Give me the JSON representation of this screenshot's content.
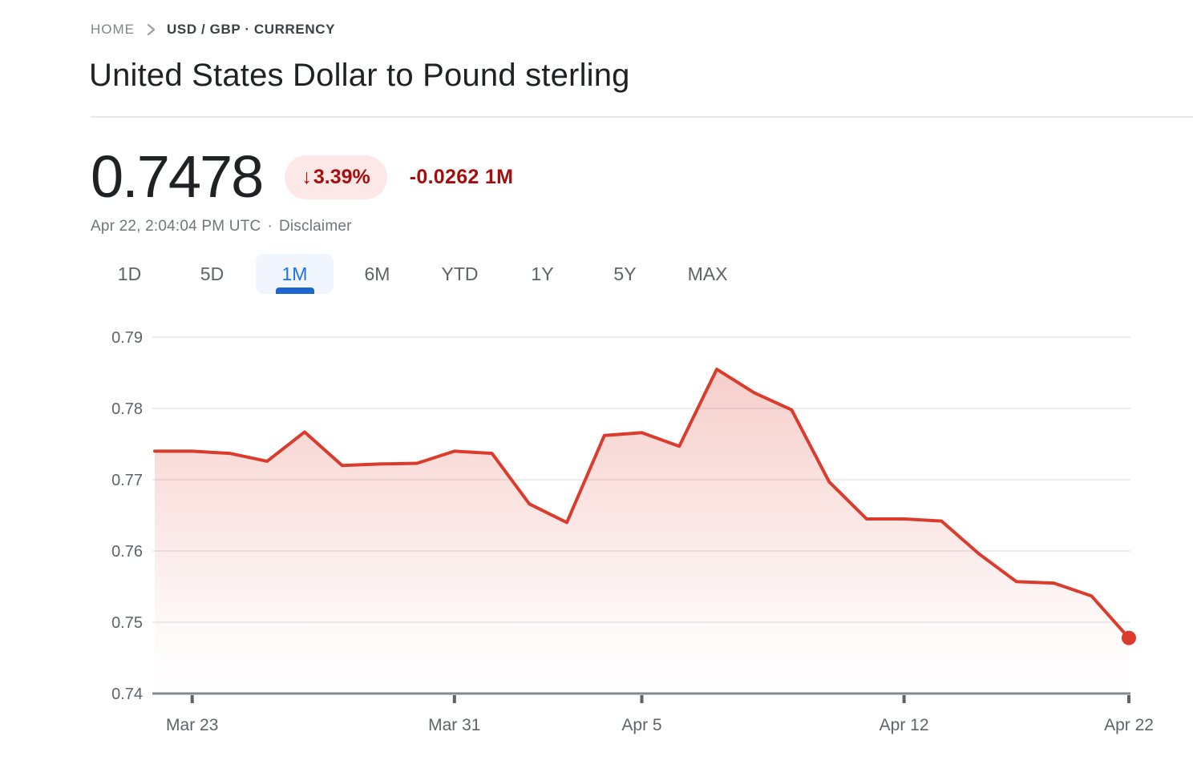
{
  "breadcrumb": {
    "home_label": "HOME",
    "current_label": "USD / GBP · CURRENCY"
  },
  "page_title": "United States Dollar to Pound sterling",
  "quote": {
    "price": "0.7478",
    "down_arrow": "↓",
    "change_percent": "3.39%",
    "change_absolute": "-0.0262 1M",
    "direction": "down",
    "timestamp": "Apr 22, 2:04:04 PM UTC",
    "separator": "·",
    "disclaimer_label": "Disclaimer"
  },
  "range_tabs": {
    "items": [
      {
        "label": "1D",
        "active": false
      },
      {
        "label": "5D",
        "active": false
      },
      {
        "label": "1M",
        "active": true
      },
      {
        "label": "6M",
        "active": false
      },
      {
        "label": "YTD",
        "active": false
      },
      {
        "label": "1Y",
        "active": false
      },
      {
        "label": "5Y",
        "active": false
      },
      {
        "label": "MAX",
        "active": false
      }
    ]
  },
  "chart_data": {
    "type": "area",
    "title": "United States Dollar to Pound sterling — 1M",
    "series": [
      {
        "name": "USD / GBP",
        "values": [
          0.774,
          0.774,
          0.7737,
          0.7726,
          0.7767,
          0.772,
          0.7722,
          0.7723,
          0.774,
          0.7737,
          0.7666,
          0.764,
          0.7762,
          0.7766,
          0.7747,
          0.7855,
          0.7822,
          0.7798,
          0.7697,
          0.7645,
          0.7645,
          0.7642,
          0.7596,
          0.7557,
          0.7555,
          0.7537,
          0.7478
        ]
      }
    ],
    "x_tick_labels": [
      "Mar 23",
      "Mar 31",
      "Apr 5",
      "Apr 12",
      "Apr 22"
    ],
    "x_tick_indices": [
      1,
      8,
      13,
      20,
      26
    ],
    "y_ticks": [
      "0.74",
      "0.75",
      "0.76",
      "0.77",
      "0.78",
      "0.79"
    ],
    "ylim": [
      0.74,
      0.79
    ],
    "grid": "horizontal",
    "legend": "none",
    "last_point_marker": true
  },
  "colors": {
    "line_red": "#db3b2c",
    "badge_bg": "#fce8e6",
    "badge_text": "#a50e0e",
    "active_tab_text": "#1a73e8",
    "active_tab_underline": "#1a67d2",
    "active_tab_bg": "#f1f5fd",
    "axis_line": "#85898e",
    "axis_text": "#5f6368",
    "gridline": "#ecedee",
    "muted_text": "#70757a"
  }
}
